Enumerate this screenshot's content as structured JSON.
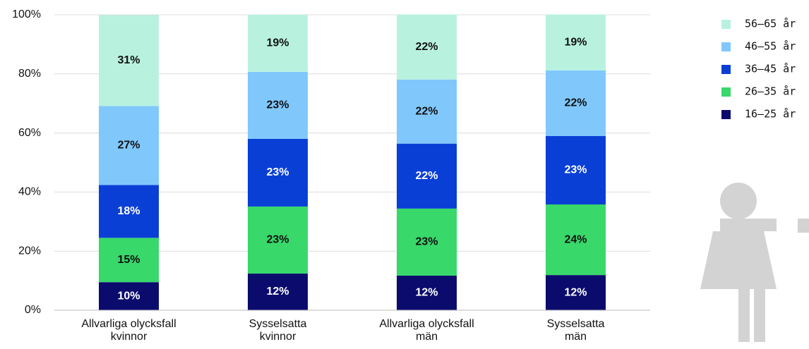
{
  "chart_data": {
    "type": "stacked_bar",
    "categories": [
      [
        "Allvarliga olycksfall",
        "kvinnor"
      ],
      [
        "Sysselsatta",
        "kvinnor"
      ],
      [
        "Allvarliga olycksfall",
        "män"
      ],
      [
        "Sysselsatta",
        "män"
      ]
    ],
    "series": [
      {
        "name": "16–25 år",
        "color": "#0b0b6e",
        "values": [
          9.5,
          12.4,
          11.7,
          11.9
        ],
        "value_labels": [
          "10%",
          "12%",
          "12%",
          "12%"
        ]
      },
      {
        "name": "26–35 år",
        "color": "#38d86a",
        "values": [
          15.0,
          22.7,
          22.7,
          23.9
        ],
        "value_labels": [
          "15%",
          "23%",
          "23%",
          "24%"
        ]
      },
      {
        "name": "36–45 år",
        "color": "#0a3fd6",
        "values": [
          17.9,
          22.9,
          22.0,
          23.2
        ],
        "value_labels": [
          "18%",
          "23%",
          "22%",
          "23%"
        ]
      },
      {
        "name": "46–55 år",
        "color": "#80c8fc",
        "values": [
          26.7,
          22.7,
          21.7,
          22.2
        ],
        "value_labels": [
          "27%",
          "23%",
          "22%",
          "22%"
        ]
      },
      {
        "name": "56–65 år",
        "color": "#b8f2df",
        "values": [
          30.8,
          19.3,
          22.0,
          18.9
        ],
        "value_labels": [
          "31%",
          "19%",
          "22%",
          "19%"
        ]
      }
    ],
    "ylim": [
      0,
      100
    ],
    "yticks": [
      {
        "value": 0,
        "label": "0%"
      },
      {
        "value": 20,
        "label": "20%"
      },
      {
        "value": 40,
        "label": "40%"
      },
      {
        "value": 60,
        "label": "60%"
      },
      {
        "value": 80,
        "label": "80%"
      },
      {
        "value": 100,
        "label": "100%"
      }
    ],
    "grid": true
  }
}
